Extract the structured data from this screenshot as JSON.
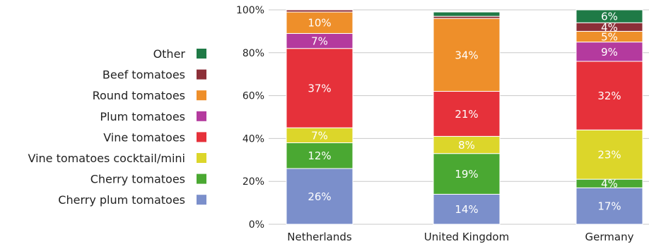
{
  "chart_data": {
    "type": "bar",
    "stacked": true,
    "categories": [
      "Netherlands",
      "United Kingdom",
      "Germany"
    ],
    "ylim": [
      0,
      100
    ],
    "y_ticks": [
      "0%",
      "20%",
      "40%",
      "60%",
      "80%",
      "100%"
    ],
    "grid": true,
    "legend_position": "left",
    "series": [
      {
        "name": "Cherry plum tomatoes",
        "color": "#7b8fcb",
        "values": [
          26,
          14,
          17
        ],
        "labels": [
          "26%",
          "14%",
          "17%"
        ]
      },
      {
        "name": "Cherry tomatoes",
        "color": "#4aa832",
        "values": [
          12,
          19,
          4
        ],
        "labels": [
          "12%",
          "19%",
          "4%"
        ]
      },
      {
        "name": "Vine tomatoes cocktail/mini",
        "color": "#dcd62a",
        "values": [
          7,
          8,
          23
        ],
        "labels": [
          "7%",
          "8%",
          "23%"
        ]
      },
      {
        "name": "Vine tomatoes",
        "color": "#e6313a",
        "values": [
          37,
          21,
          32
        ],
        "labels": [
          "37%",
          "21%",
          "32%"
        ]
      },
      {
        "name": "Plum tomatoes",
        "color": "#b43a9e",
        "values": [
          7,
          0,
          9
        ],
        "labels": [
          "7%",
          "",
          "9%"
        ]
      },
      {
        "name": "Round tomatoes",
        "color": "#ee8f2a",
        "values": [
          10,
          34,
          5
        ],
        "labels": [
          "10%",
          "34%",
          "5%"
        ]
      },
      {
        "name": "Beef tomatoes",
        "color": "#8c2f38",
        "values": [
          1,
          1,
          4
        ],
        "labels": [
          "",
          "",
          "4%"
        ]
      },
      {
        "name": "Other",
        "color": "#1f7a46",
        "values": [
          0,
          2,
          6
        ],
        "labels": [
          "",
          "",
          "6%"
        ]
      }
    ]
  }
}
